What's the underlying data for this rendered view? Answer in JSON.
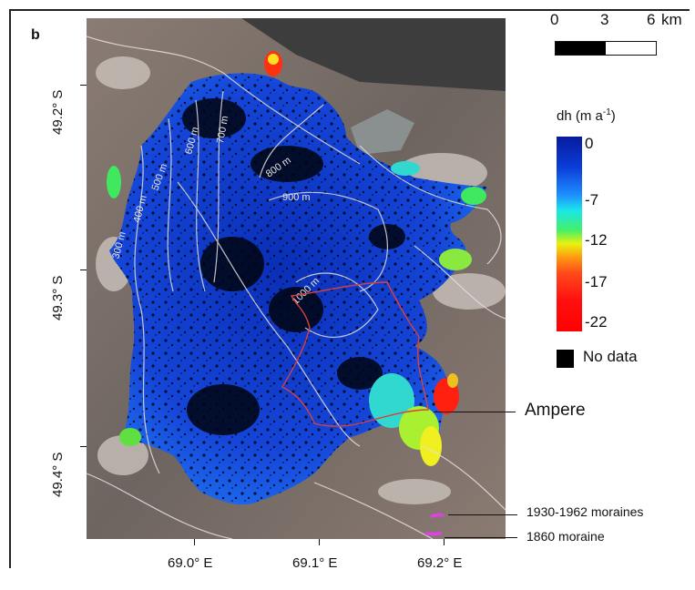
{
  "panel_label": "b",
  "latitude_labels": [
    "49.2° S",
    "49.3° S",
    "49.4° S"
  ],
  "longitude_labels": [
    "69.0° E",
    "69.1° E",
    "69.2° E"
  ],
  "scale": {
    "ticks": [
      "0",
      "3",
      "6"
    ],
    "unit": "km"
  },
  "legend": {
    "title_prefix": "dh (m a",
    "title_sup": "-1",
    "title_suffix": ")",
    "values": [
      "0",
      "-7",
      "-12",
      "-17",
      "-22"
    ],
    "colors": {
      "high": "#081a9e",
      "mid": "#1be7e8",
      "low": "#ff0000"
    },
    "no_data_label": "No data",
    "no_data_color": "#000000"
  },
  "contours": [
    "300 m",
    "400 m",
    "500 m",
    "600 m",
    "700 m",
    "800 m",
    "900 m",
    "1000 m"
  ],
  "annotations": {
    "glacier": "Ampere",
    "moraines_recent": "1930-1962 moraines",
    "moraine_old": "1860 moraine"
  },
  "colors": {
    "ice": "#1a3fd0",
    "terrain": "#7a6a62",
    "moraine_mark": "#e040e8",
    "outline": "#d84040"
  }
}
